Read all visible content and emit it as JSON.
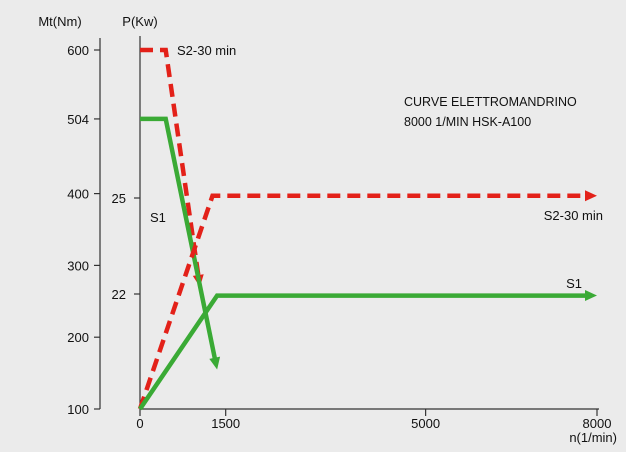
{
  "chart_data": {
    "type": "line",
    "title": "",
    "annotation": [
      "CURVE ELETTROMANDRINO",
      "8000 1/MIN HSK-A100"
    ],
    "left_axis": {
      "title": "Mt(Nm)",
      "ticks": [
        100,
        200,
        300,
        400,
        504,
        600
      ],
      "tick_labels": [
        "100",
        "200",
        "300",
        "400",
        "504",
        "600"
      ],
      "range": [
        100,
        600
      ]
    },
    "power_axis": {
      "title": "P(Kw)",
      "ticks": [
        22,
        25
      ],
      "tick_labels": [
        "22",
        "25"
      ]
    },
    "x_axis": {
      "title": "n(1/min)",
      "ticks": [
        0,
        1500,
        5000,
        8000
      ],
      "tick_labels": [
        "0",
        "1500",
        "5000",
        "8000"
      ],
      "range": [
        0,
        8000
      ]
    },
    "series": [
      {
        "name": "S2-30 min",
        "kind": "torque",
        "color": "#e32119",
        "dashed": true,
        "points": [
          [
            0,
            600
          ],
          [
            450,
            600
          ],
          [
            1050,
            270
          ]
        ]
      },
      {
        "name": "S1",
        "kind": "torque",
        "color": "#3aaa35",
        "dashed": false,
        "points": [
          [
            0,
            504
          ],
          [
            450,
            504
          ],
          [
            1350,
            155
          ]
        ]
      },
      {
        "name": "S2-30 min",
        "kind": "power",
        "color": "#e32119",
        "dashed": true,
        "points": [
          [
            0,
            100
          ],
          [
            1270,
            397
          ],
          [
            8000,
            397
          ]
        ]
      },
      {
        "name": "S1",
        "kind": "power",
        "color": "#3aaa35",
        "dashed": false,
        "points": [
          [
            0,
            100
          ],
          [
            1350,
            258
          ],
          [
            8000,
            258
          ]
        ]
      }
    ],
    "labels": {
      "s2_torque": "S2-30 min",
      "s1_torque": "S1",
      "s2_power": "S2-30 min",
      "s1_power": "S1"
    }
  }
}
